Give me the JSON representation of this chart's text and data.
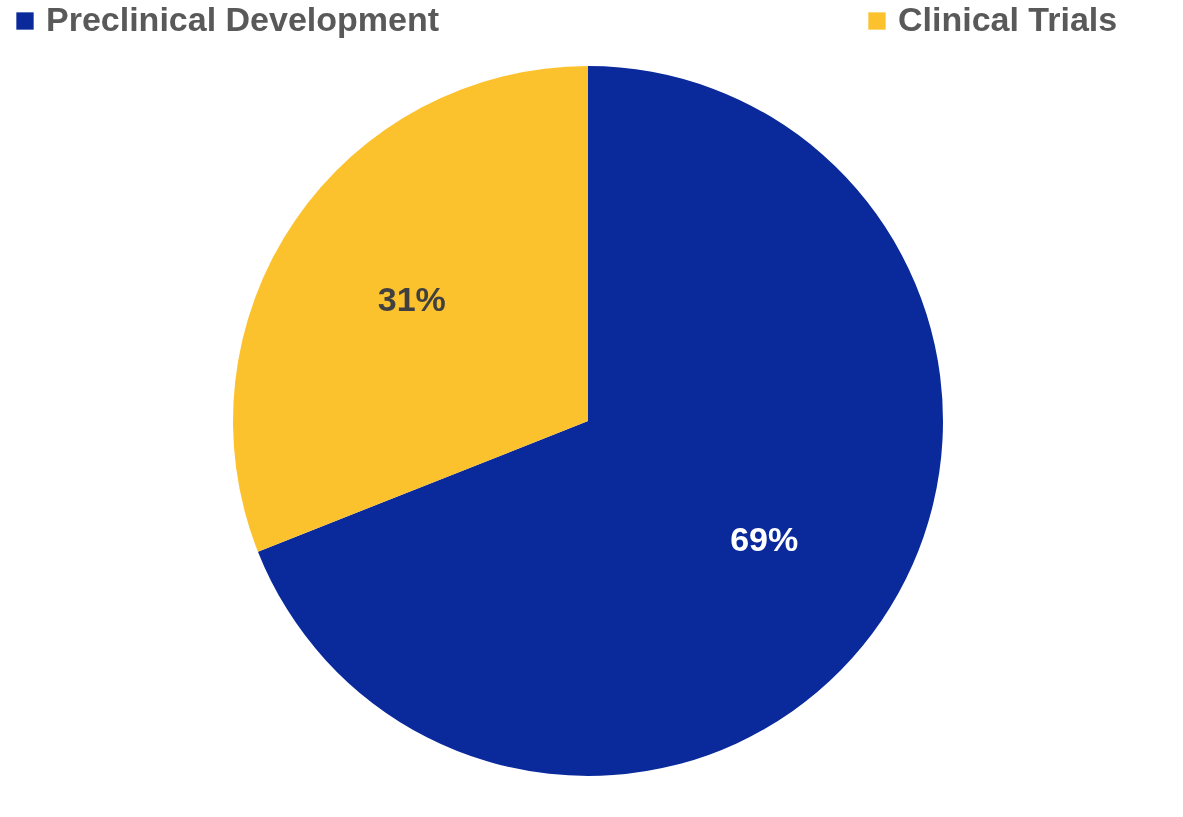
{
  "chart_data": {
    "type": "pie",
    "categories": [
      "Preclinical Development",
      "Clinical Trials"
    ],
    "values": [
      69,
      31
    ],
    "colors": [
      "#0a2a9c",
      "#fcc22d"
    ],
    "value_labels": [
      "69%",
      "31%"
    ],
    "legend": "top"
  }
}
